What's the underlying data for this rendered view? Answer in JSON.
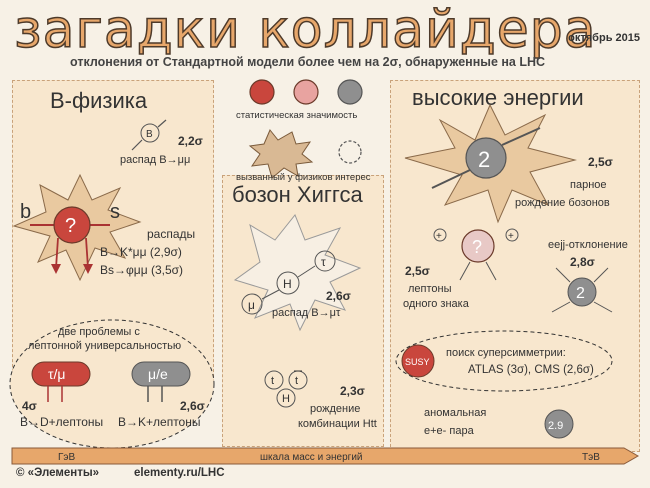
{
  "header": {
    "title": "загадки коллайдера",
    "date": "октябрь 2015",
    "subtitle": "отклонения от Стандартной модели более чем на 2σ, обнаруженные на LHC"
  },
  "legend": {
    "significance_label": "статистическая значимость",
    "interest_label": "вызванный у физиков интерес"
  },
  "b_physics": {
    "title": "B-физика",
    "b_label": "B",
    "b_sigma": "2,2σ",
    "b_decay": "распад B→μμ",
    "quark_left": "b",
    "quark_right": "s",
    "question": "?",
    "decays_title": "распады",
    "decay1": "B→K*μμ (2,9σ)",
    "decay2": "Bs→φμμ (3,5σ)",
    "problems_title_1": "две проблемы с",
    "problems_title_2": "лептонной универсальностью",
    "tau_mu": "τ/μ",
    "mu_e": "μ/e",
    "sig_left": "4σ",
    "decay_left": "B→D+лептоны",
    "sig_right": "2,6σ",
    "decay_right": "B→K+лептоны"
  },
  "higgs": {
    "title": "бозон Хиггса",
    "tau": "τ",
    "h": "H",
    "mu": "μ",
    "sigma1": "2,6σ",
    "decay": "распад B→μτ",
    "t1": "t",
    "t2": "t",
    "h2": "H",
    "sigma2": "2,3σ",
    "text2a": "рождение",
    "text2b": "комбинации Htt"
  },
  "high_energy": {
    "title": "высокие энергии",
    "boson_label": "2",
    "boson_sigma": "2,5σ",
    "boson_text_a": "парное",
    "boson_text_b": "рождение бозонов",
    "plus1": "+",
    "plus2": "+",
    "question": "?",
    "lep_sigma": "2,5σ",
    "lep_text_a": "лептоны",
    "lep_text_b": "одного знака",
    "eejj_title": "eejj-отклонение",
    "eejj_sigma": "2,8σ",
    "eejj_label": "2",
    "susy": "SUSY",
    "susy_title": "поиск суперсимметрии:",
    "susy_results": "ATLAS (3σ), CMS (2,6σ)",
    "anom_a": "аномальная",
    "anom_b": "e+e- пара",
    "anom_value": "2.9"
  },
  "scale": {
    "left": "ГэВ",
    "center": "шкала масс и энергий",
    "right": "ТэВ"
  },
  "footer": {
    "credit": "© «Элементы»",
    "url": "elementy.ru/LHC"
  },
  "colors": {
    "red": "#c9463d",
    "gray": "#8f8f8f",
    "orange": "#e7a76b",
    "panel": "#f8e7ce"
  }
}
